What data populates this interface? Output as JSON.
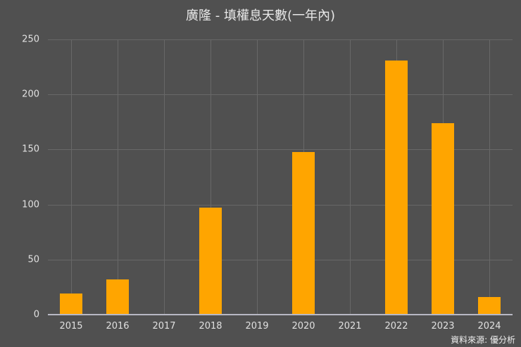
{
  "chart_data": {
    "type": "bar",
    "title": "廣隆 - 填權息天數(一年內)",
    "xlabel": "",
    "ylabel": "",
    "categories": [
      "2015",
      "2016",
      "2017",
      "2018",
      "2019",
      "2020",
      "2021",
      "2022",
      "2023",
      "2024"
    ],
    "values": [
      19,
      32,
      0,
      97,
      0,
      148,
      0,
      231,
      174,
      16
    ],
    "ylim": [
      0,
      250
    ],
    "yticks": [
      0,
      50,
      100,
      150,
      200,
      250
    ],
    "grid": true,
    "legend": null,
    "bar_color": "#ffa500",
    "background_color": "#505050"
  },
  "footer": {
    "source": "資料來源: 優分析"
  }
}
